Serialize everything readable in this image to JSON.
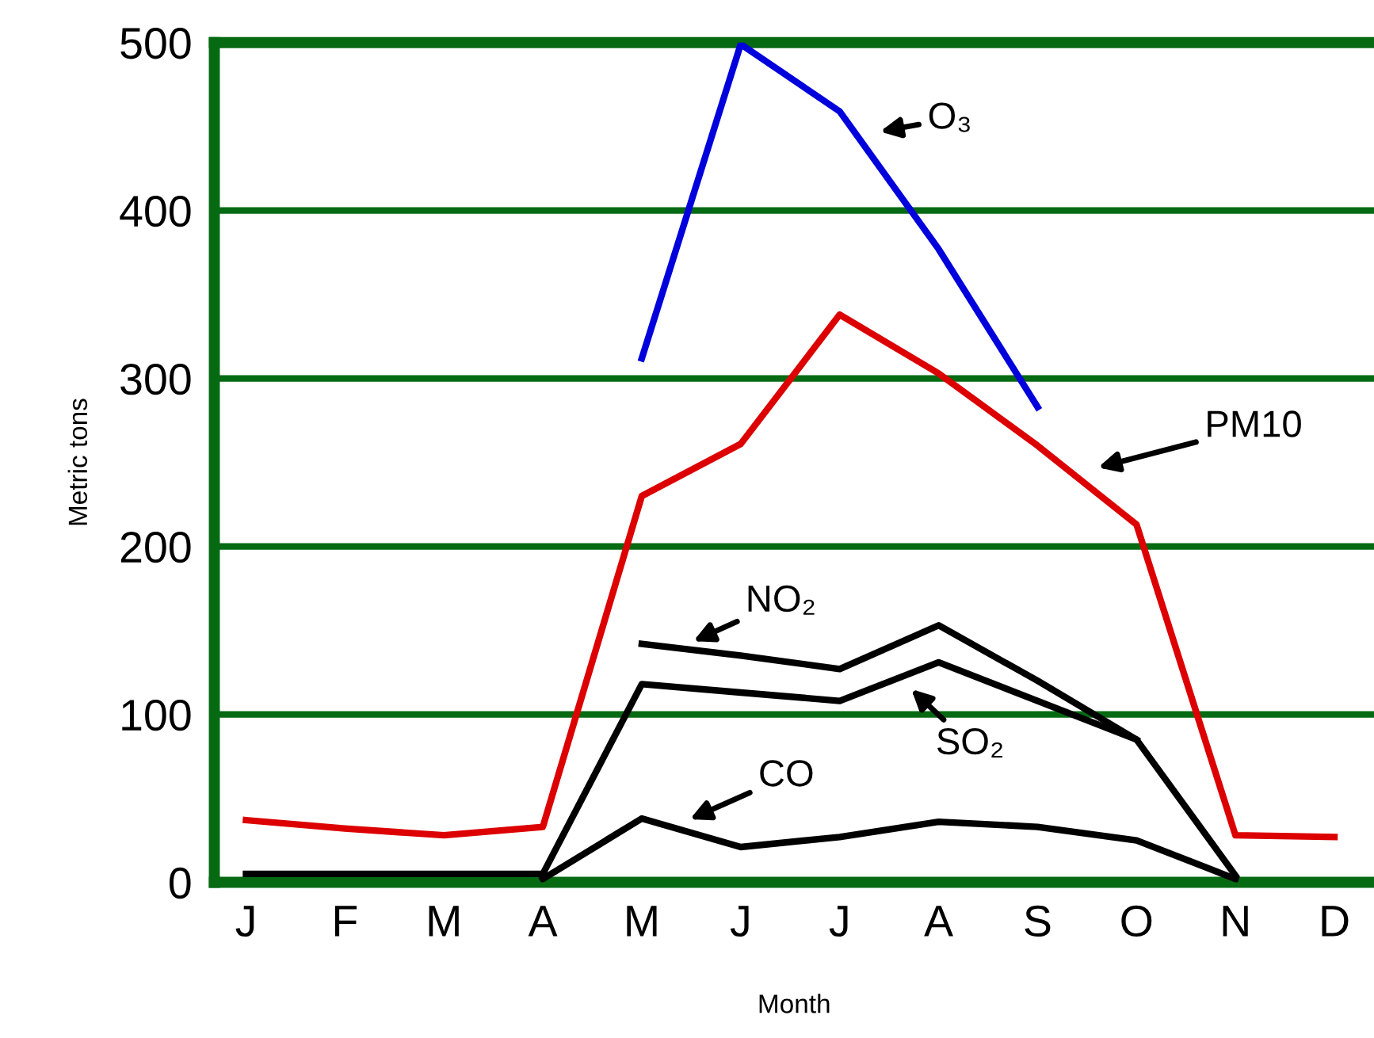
{
  "chart_data": {
    "type": "line",
    "xlabel": "Month",
    "ylabel": "Metric tons",
    "categories": [
      "J",
      "F",
      "M",
      "A",
      "M",
      "J",
      "J",
      "A",
      "S",
      "O",
      "N",
      "D"
    ],
    "ylim": [
      0,
      500
    ],
    "yticks": [
      0,
      100,
      200,
      300,
      400,
      500
    ],
    "grid": "y",
    "legend": false,
    "marker": "none",
    "line_style": "solid",
    "series": [
      {
        "color": "#0000dd",
        "values": [
          null,
          null,
          null,
          null,
          312,
          499,
          459,
          377,
          283,
          null,
          null,
          null
        ]
      },
      {
        "color": "#dd0000",
        "values": [
          37,
          32,
          28,
          33,
          230,
          261,
          338,
          303,
          260,
          213,
          28,
          27
        ]
      },
      {
        "color": "#000000",
        "values": [
          null,
          null,
          null,
          null,
          142,
          135,
          127,
          153,
          120,
          85,
          null,
          null
        ]
      },
      {
        "color": "#000000",
        "values": [
          5,
          5,
          5,
          5,
          118,
          113,
          108,
          131,
          108,
          85,
          4,
          null
        ]
      },
      {
        "color": "#000000",
        "values": [
          null,
          null,
          null,
          2,
          38,
          21,
          27,
          36,
          33,
          25,
          2,
          null
        ]
      }
    ],
    "annotations": [
      "O₃",
      "PM10",
      "NO₂",
      "SO₂",
      "CO"
    ]
  }
}
